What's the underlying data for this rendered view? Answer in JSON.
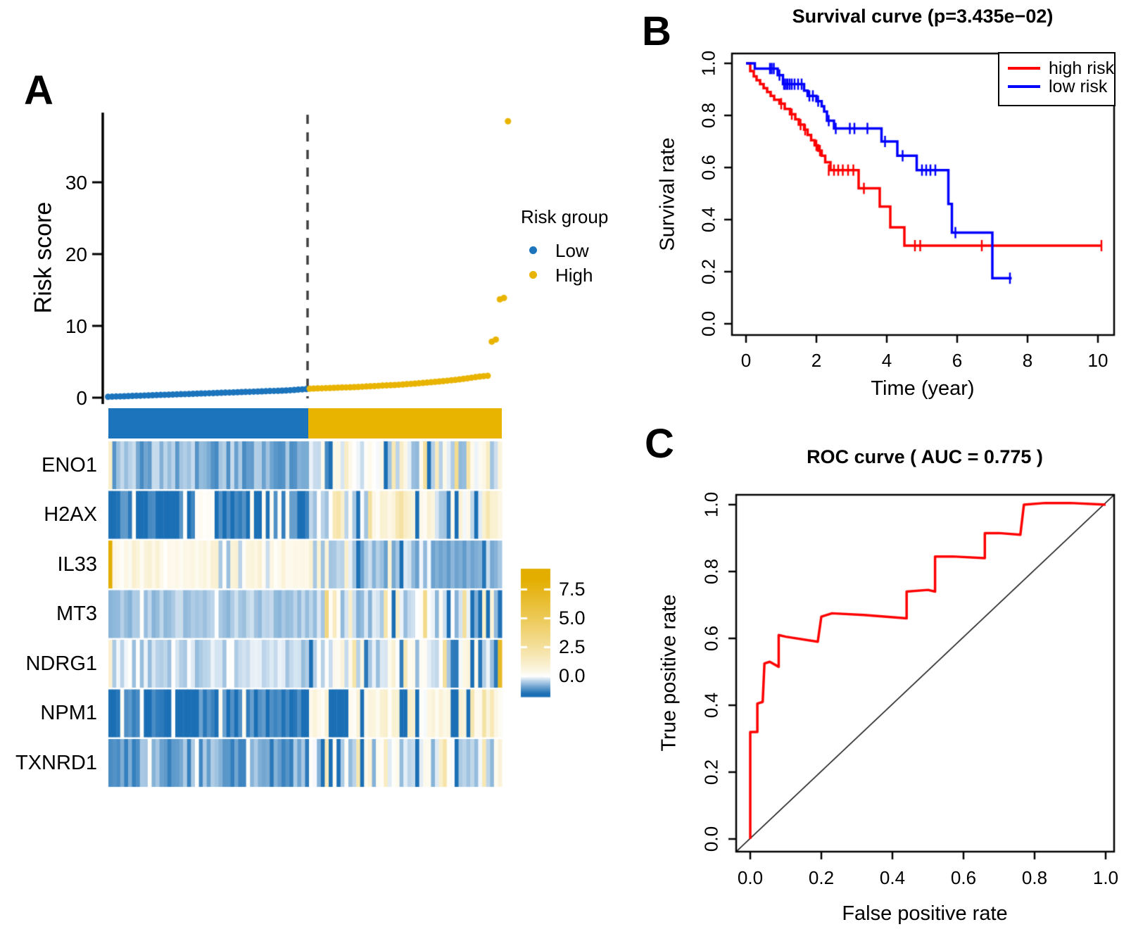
{
  "chart_data": {
    "figure": {
      "panel_a_letter": "A",
      "panel_b_letter": "B",
      "panel_c_letter": "C"
    },
    "colors": {
      "group_low": "#1B74BC",
      "group_high": "#E9B400",
      "heat_blue": "#1B6FB5",
      "heat_gold": "#E3AE00",
      "survival_high": "#FF0000",
      "survival_low": "#0000FF",
      "roc_line": "#FF0000",
      "threshold_dash": "#3F3F3F"
    },
    "risk_scatter": {
      "type": "scatter",
      "ylabel": "Risk score",
      "yticks": [
        0,
        10,
        20,
        30
      ],
      "legend_title": "Risk group",
      "legend": [
        {
          "label": "Low",
          "color": "#1B74BC"
        },
        {
          "label": "High",
          "color": "#E9B400"
        }
      ],
      "low_values": [
        0.12,
        0.14,
        0.16,
        0.18,
        0.2,
        0.22,
        0.24,
        0.26,
        0.28,
        0.3,
        0.32,
        0.34,
        0.36,
        0.38,
        0.4,
        0.42,
        0.44,
        0.46,
        0.48,
        0.5,
        0.52,
        0.54,
        0.56,
        0.58,
        0.6,
        0.62,
        0.64,
        0.66,
        0.68,
        0.7,
        0.72,
        0.74,
        0.76,
        0.78,
        0.8,
        0.82,
        0.84,
        0.86,
        0.88,
        0.9,
        0.92,
        0.94,
        0.96,
        0.98,
        1.0,
        1.04,
        1.08,
        1.12,
        1.16,
        1.2
      ],
      "high_values": [
        1.25,
        1.27,
        1.29,
        1.31,
        1.33,
        1.35,
        1.37,
        1.39,
        1.41,
        1.43,
        1.45,
        1.47,
        1.5,
        1.53,
        1.56,
        1.59,
        1.62,
        1.65,
        1.68,
        1.71,
        1.74,
        1.77,
        1.8,
        1.84,
        1.88,
        1.92,
        1.96,
        2.0,
        2.05,
        2.1,
        2.15,
        2.2,
        2.25,
        2.3,
        2.36,
        2.42,
        2.48,
        2.55,
        2.62,
        2.7,
        2.78,
        2.86,
        2.94,
        3.0,
        3.05,
        7.8,
        8.1,
        13.7,
        13.9,
        38.5
      ]
    },
    "expression_heatmap": {
      "type": "heatmap",
      "n_cols": 100,
      "n_left": 51,
      "seed": 911,
      "color_domain": [
        -1.8,
        9.3
      ],
      "colorbar_ticks": [
        "7.5",
        "5.0",
        "2.5",
        "0.0"
      ],
      "genes": [
        {
          "label": "ENO1",
          "left_mean": -0.75,
          "left_spread": 0.45,
          "right_mean": -0.1,
          "right_spread": 0.6,
          "specials": [
            [
              0,
              1.2
            ],
            [
              55,
              -1.2
            ],
            [
              72,
              1.8
            ],
            [
              80,
              2.6
            ],
            [
              83,
              1.6
            ],
            [
              88,
              3.0
            ],
            [
              91,
              2.2
            ],
            [
              96,
              1.4
            ]
          ]
        },
        {
          "label": "H2AX",
          "left_mean": -1.45,
          "left_spread": 0.5,
          "right_mean": 0.2,
          "right_spread": 0.8,
          "specials": [
            [
              22,
              0.1
            ],
            [
              23,
              0.2
            ],
            [
              24,
              0.05
            ],
            [
              25,
              0.15
            ],
            [
              26,
              0.1
            ],
            [
              57,
              1.8
            ],
            [
              58,
              2.2
            ],
            [
              63,
              -1.6
            ],
            [
              66,
              2.6
            ],
            [
              73,
              1.9
            ],
            [
              74,
              2.4
            ],
            [
              78,
              -1.7
            ],
            [
              88,
              -1.6
            ],
            [
              93,
              -1.5
            ],
            [
              96,
              2.0
            ]
          ]
        },
        {
          "label": "IL33",
          "left_mean": 0.5,
          "left_spread": 0.55,
          "right_mean": -0.5,
          "right_spread": 0.45,
          "specials": [
            [
              0,
              8.5
            ],
            [
              28,
              -0.5
            ],
            [
              30,
              -0.6
            ],
            [
              33,
              -0.4
            ],
            [
              40,
              -0.3
            ],
            [
              55,
              0.8
            ],
            [
              71,
              0.9
            ],
            [
              84,
              -0.9
            ],
            [
              85,
              -0.8
            ],
            [
              86,
              -1.0
            ],
            [
              87,
              -0.7
            ],
            [
              88,
              -0.9
            ],
            [
              89,
              -0.8
            ],
            [
              90,
              -1.0
            ],
            [
              91,
              -0.7
            ],
            [
              92,
              -0.9
            ],
            [
              93,
              -0.8
            ]
          ]
        },
        {
          "label": "MT3",
          "left_mean": -0.5,
          "left_spread": 0.25,
          "right_mean": -0.3,
          "right_spread": 0.5,
          "specials": [
            [
              8,
              0.05
            ],
            [
              27,
              0.0
            ],
            [
              55,
              3.6
            ],
            [
              57,
              1.5
            ],
            [
              70,
              2.2
            ],
            [
              80,
              3.2
            ],
            [
              90,
              2.6
            ],
            [
              95,
              1.2
            ],
            [
              97,
              0.8
            ]
          ]
        },
        {
          "label": "NDRG1",
          "left_mean": -0.3,
          "left_spread": 0.35,
          "right_mean": -0.05,
          "right_spread": 0.6,
          "specials": [
            [
              0,
              1.0
            ],
            [
              62,
              2.2
            ],
            [
              75,
              1.8
            ],
            [
              85,
              2.6
            ],
            [
              99,
              7.0
            ]
          ]
        },
        {
          "label": "NPM1",
          "left_mean": -1.4,
          "left_spread": 0.5,
          "right_mean": 0.45,
          "right_spread": 0.55,
          "specials": [
            [
              57,
              -1.6
            ],
            [
              58,
              -1.7
            ],
            [
              59,
              -1.5
            ],
            [
              60,
              -1.6
            ],
            [
              74,
              -1.8
            ],
            [
              75,
              -1.6
            ],
            [
              87,
              -1.7
            ],
            [
              88,
              -1.5
            ],
            [
              92,
              2.0
            ],
            [
              95,
              2.3
            ],
            [
              97,
              1.8
            ]
          ]
        },
        {
          "label": "TXNRD1",
          "left_mean": -0.9,
          "left_spread": 0.5,
          "right_mean": -0.3,
          "right_spread": 0.8,
          "specials": [
            [
              10,
              0.1
            ],
            [
              22,
              0.05
            ],
            [
              35,
              0.1
            ],
            [
              55,
              1.6
            ],
            [
              58,
              -1.6
            ],
            [
              63,
              2.0
            ],
            [
              70,
              1.4
            ],
            [
              78,
              -1.7
            ],
            [
              85,
              2.2
            ],
            [
              95,
              1.8
            ]
          ]
        }
      ]
    },
    "survival": {
      "type": "line",
      "title": "Survival curve (p=3.435e−02)",
      "xlabel": "Time (year)",
      "ylabel": "Survival rate",
      "xticks": [
        0,
        2,
        4,
        6,
        8,
        10
      ],
      "yticks": [
        "0.0",
        "0.2",
        "0.4",
        "0.6",
        "0.8",
        "1.0"
      ],
      "legend": [
        {
          "label": "high risk",
          "color": "#FF0000"
        },
        {
          "label": "low risk",
          "color": "#0000FF"
        }
      ],
      "series": [
        {
          "name": "high risk",
          "color": "#FF0000",
          "steps": [
            [
              0,
              1.0
            ],
            [
              0.12,
              0.97
            ],
            [
              0.22,
              0.95
            ],
            [
              0.3,
              0.935
            ],
            [
              0.4,
              0.92
            ],
            [
              0.5,
              0.905
            ],
            [
              0.6,
              0.89
            ],
            [
              0.7,
              0.875
            ],
            [
              0.8,
              0.86
            ],
            [
              0.95,
              0.845
            ],
            [
              1.1,
              0.825
            ],
            [
              1.25,
              0.805
            ],
            [
              1.4,
              0.785
            ],
            [
              1.5,
              0.765
            ],
            [
              1.65,
              0.745
            ],
            [
              1.75,
              0.725
            ],
            [
              1.85,
              0.705
            ],
            [
              1.95,
              0.685
            ],
            [
              2.05,
              0.665
            ],
            [
              2.15,
              0.645
            ],
            [
              2.25,
              0.62
            ],
            [
              2.4,
              0.59
            ],
            [
              3.2,
              0.52
            ],
            [
              3.8,
              0.45
            ],
            [
              4.1,
              0.37
            ],
            [
              4.5,
              0.3
            ],
            [
              10.1,
              0.3
            ]
          ],
          "censors": [
            [
              1.0,
              0.845
            ],
            [
              1.3,
              0.805
            ],
            [
              1.55,
              0.765
            ],
            [
              1.68,
              0.745
            ],
            [
              2.0,
              0.685
            ],
            [
              2.1,
              0.665
            ],
            [
              2.35,
              0.59
            ],
            [
              2.5,
              0.59
            ],
            [
              2.62,
              0.59
            ],
            [
              2.75,
              0.59
            ],
            [
              2.9,
              0.59
            ],
            [
              3.05,
              0.59
            ],
            [
              3.35,
              0.52
            ],
            [
              4.8,
              0.3
            ],
            [
              4.95,
              0.3
            ],
            [
              6.7,
              0.3
            ],
            [
              10.1,
              0.3
            ]
          ]
        },
        {
          "name": "low risk",
          "color": "#0000FF",
          "steps": [
            [
              0,
              1.0
            ],
            [
              0.25,
              0.98
            ],
            [
              0.9,
              0.955
            ],
            [
              1.05,
              0.92
            ],
            [
              1.65,
              0.895
            ],
            [
              1.75,
              0.875
            ],
            [
              2.0,
              0.855
            ],
            [
              2.15,
              0.835
            ],
            [
              2.22,
              0.815
            ],
            [
              2.3,
              0.78
            ],
            [
              2.5,
              0.75
            ],
            [
              3.85,
              0.7
            ],
            [
              4.3,
              0.645
            ],
            [
              4.85,
              0.59
            ],
            [
              5.75,
              0.46
            ],
            [
              5.85,
              0.35
            ],
            [
              7.0,
              0.175
            ],
            [
              7.55,
              0.175
            ]
          ],
          "censors": [
            [
              0.68,
              0.98
            ],
            [
              0.73,
              0.98
            ],
            [
              0.79,
              0.98
            ],
            [
              0.95,
              0.955
            ],
            [
              1.08,
              0.92
            ],
            [
              1.13,
              0.92
            ],
            [
              1.18,
              0.92
            ],
            [
              1.24,
              0.92
            ],
            [
              1.3,
              0.92
            ],
            [
              1.38,
              0.92
            ],
            [
              1.48,
              0.92
            ],
            [
              1.58,
              0.92
            ],
            [
              1.8,
              0.875
            ],
            [
              1.9,
              0.875
            ],
            [
              2.05,
              0.855
            ],
            [
              2.35,
              0.78
            ],
            [
              2.55,
              0.75
            ],
            [
              2.95,
              0.75
            ],
            [
              3.08,
              0.75
            ],
            [
              3.45,
              0.75
            ],
            [
              3.95,
              0.7
            ],
            [
              4.45,
              0.645
            ],
            [
              5.0,
              0.59
            ],
            [
              5.12,
              0.59
            ],
            [
              5.24,
              0.59
            ],
            [
              5.38,
              0.59
            ],
            [
              5.95,
              0.35
            ],
            [
              7.5,
              0.175
            ]
          ]
        }
      ]
    },
    "roc": {
      "type": "line",
      "title": "ROC curve ( AUC =  0.775 )",
      "auc": 0.775,
      "xlabel": "False positive rate",
      "ylabel": "True positive rate",
      "xticks": [
        "0.0",
        "0.2",
        "0.4",
        "0.6",
        "0.8",
        "1.0"
      ],
      "yticks": [
        "0.0",
        "0.2",
        "0.4",
        "0.6",
        "0.8",
        "1.0"
      ],
      "diagonal": true,
      "points": [
        [
          0,
          0
        ],
        [
          0,
          0.32
        ],
        [
          0.02,
          0.32
        ],
        [
          0.02,
          0.405
        ],
        [
          0.035,
          0.41
        ],
        [
          0.04,
          0.525
        ],
        [
          0.055,
          0.53
        ],
        [
          0.08,
          0.515
        ],
        [
          0.08,
          0.61
        ],
        [
          0.1,
          0.605
        ],
        [
          0.19,
          0.59
        ],
        [
          0.2,
          0.665
        ],
        [
          0.23,
          0.675
        ],
        [
          0.32,
          0.67
        ],
        [
          0.44,
          0.66
        ],
        [
          0.44,
          0.74
        ],
        [
          0.5,
          0.745
        ],
        [
          0.52,
          0.74
        ],
        [
          0.52,
          0.845
        ],
        [
          0.57,
          0.845
        ],
        [
          0.66,
          0.84
        ],
        [
          0.66,
          0.915
        ],
        [
          0.7,
          0.915
        ],
        [
          0.76,
          0.91
        ],
        [
          0.77,
          1.0
        ],
        [
          0.83,
          1.005
        ],
        [
          0.9,
          1.005
        ],
        [
          1.0,
          1.0
        ]
      ]
    }
  }
}
